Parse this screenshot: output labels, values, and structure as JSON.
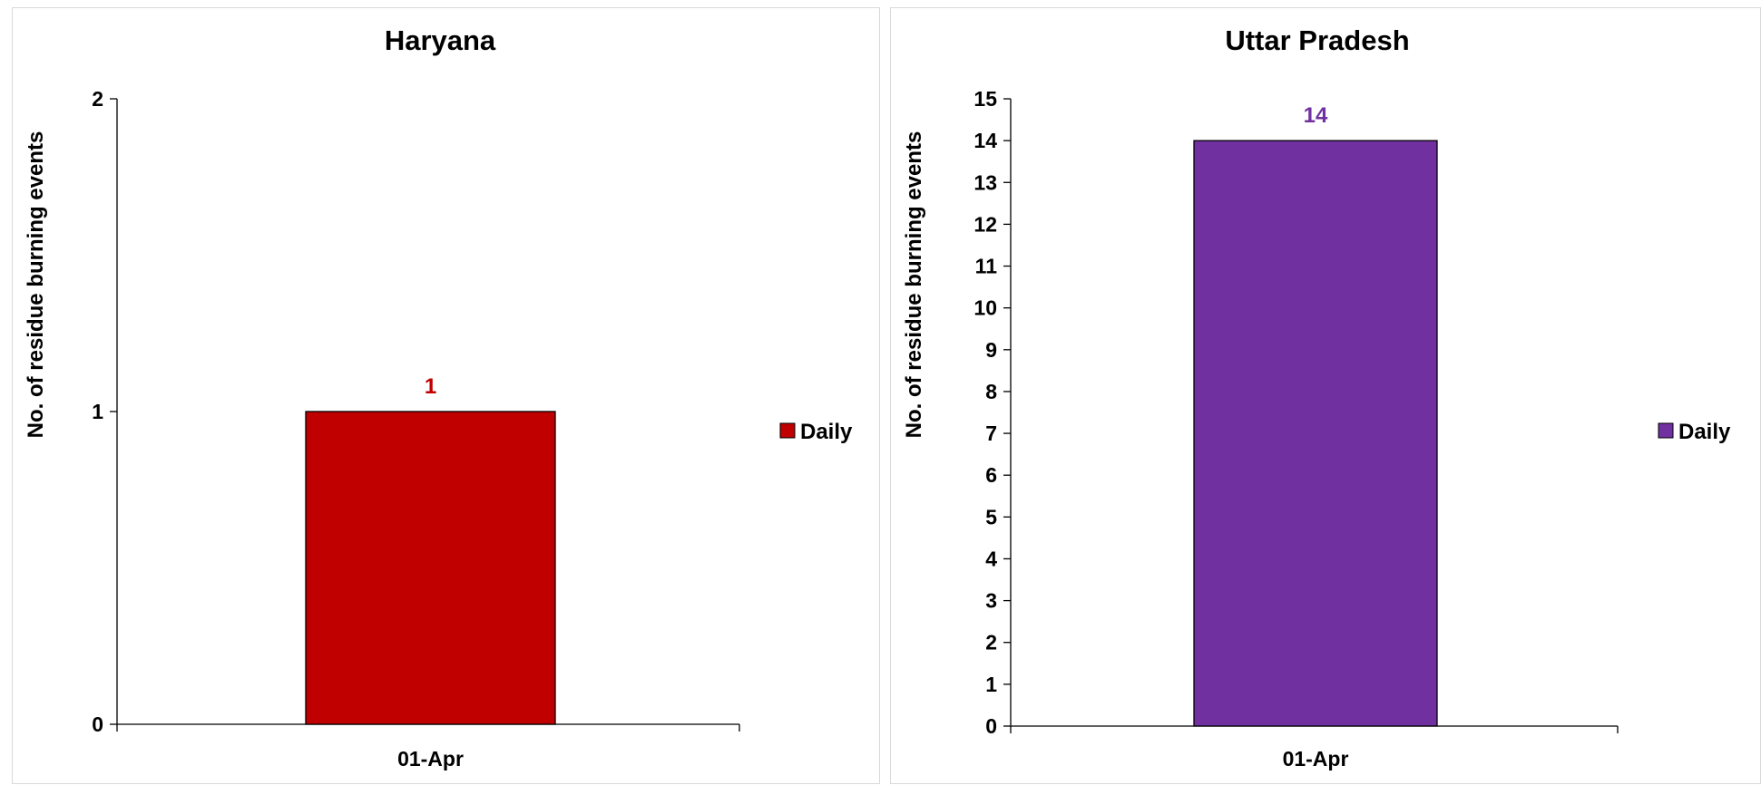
{
  "chart_data": [
    {
      "type": "bar",
      "title": "Haryana",
      "xlabel": "",
      "ylabel": "No. of residue burning events",
      "categories": [
        "01-Apr"
      ],
      "series": [
        {
          "name": "Daily",
          "values": [
            1
          ],
          "color": "#C00000"
        }
      ],
      "ylim": [
        0,
        2
      ],
      "yticks": [
        0,
        1,
        2
      ],
      "data_labels": [
        "1"
      ],
      "legend": "right",
      "grid": false
    },
    {
      "type": "bar",
      "title": "Uttar Pradesh",
      "xlabel": "",
      "ylabel": "No. of residue burning events",
      "categories": [
        "01-Apr"
      ],
      "series": [
        {
          "name": "Daily",
          "values": [
            14
          ],
          "color": "#7030A0"
        }
      ],
      "ylim": [
        0,
        15
      ],
      "yticks": [
        0,
        1,
        2,
        3,
        4,
        5,
        6,
        7,
        8,
        9,
        10,
        11,
        12,
        13,
        14,
        15
      ],
      "data_labels": [
        "14"
      ],
      "legend": "right",
      "grid": false
    }
  ]
}
